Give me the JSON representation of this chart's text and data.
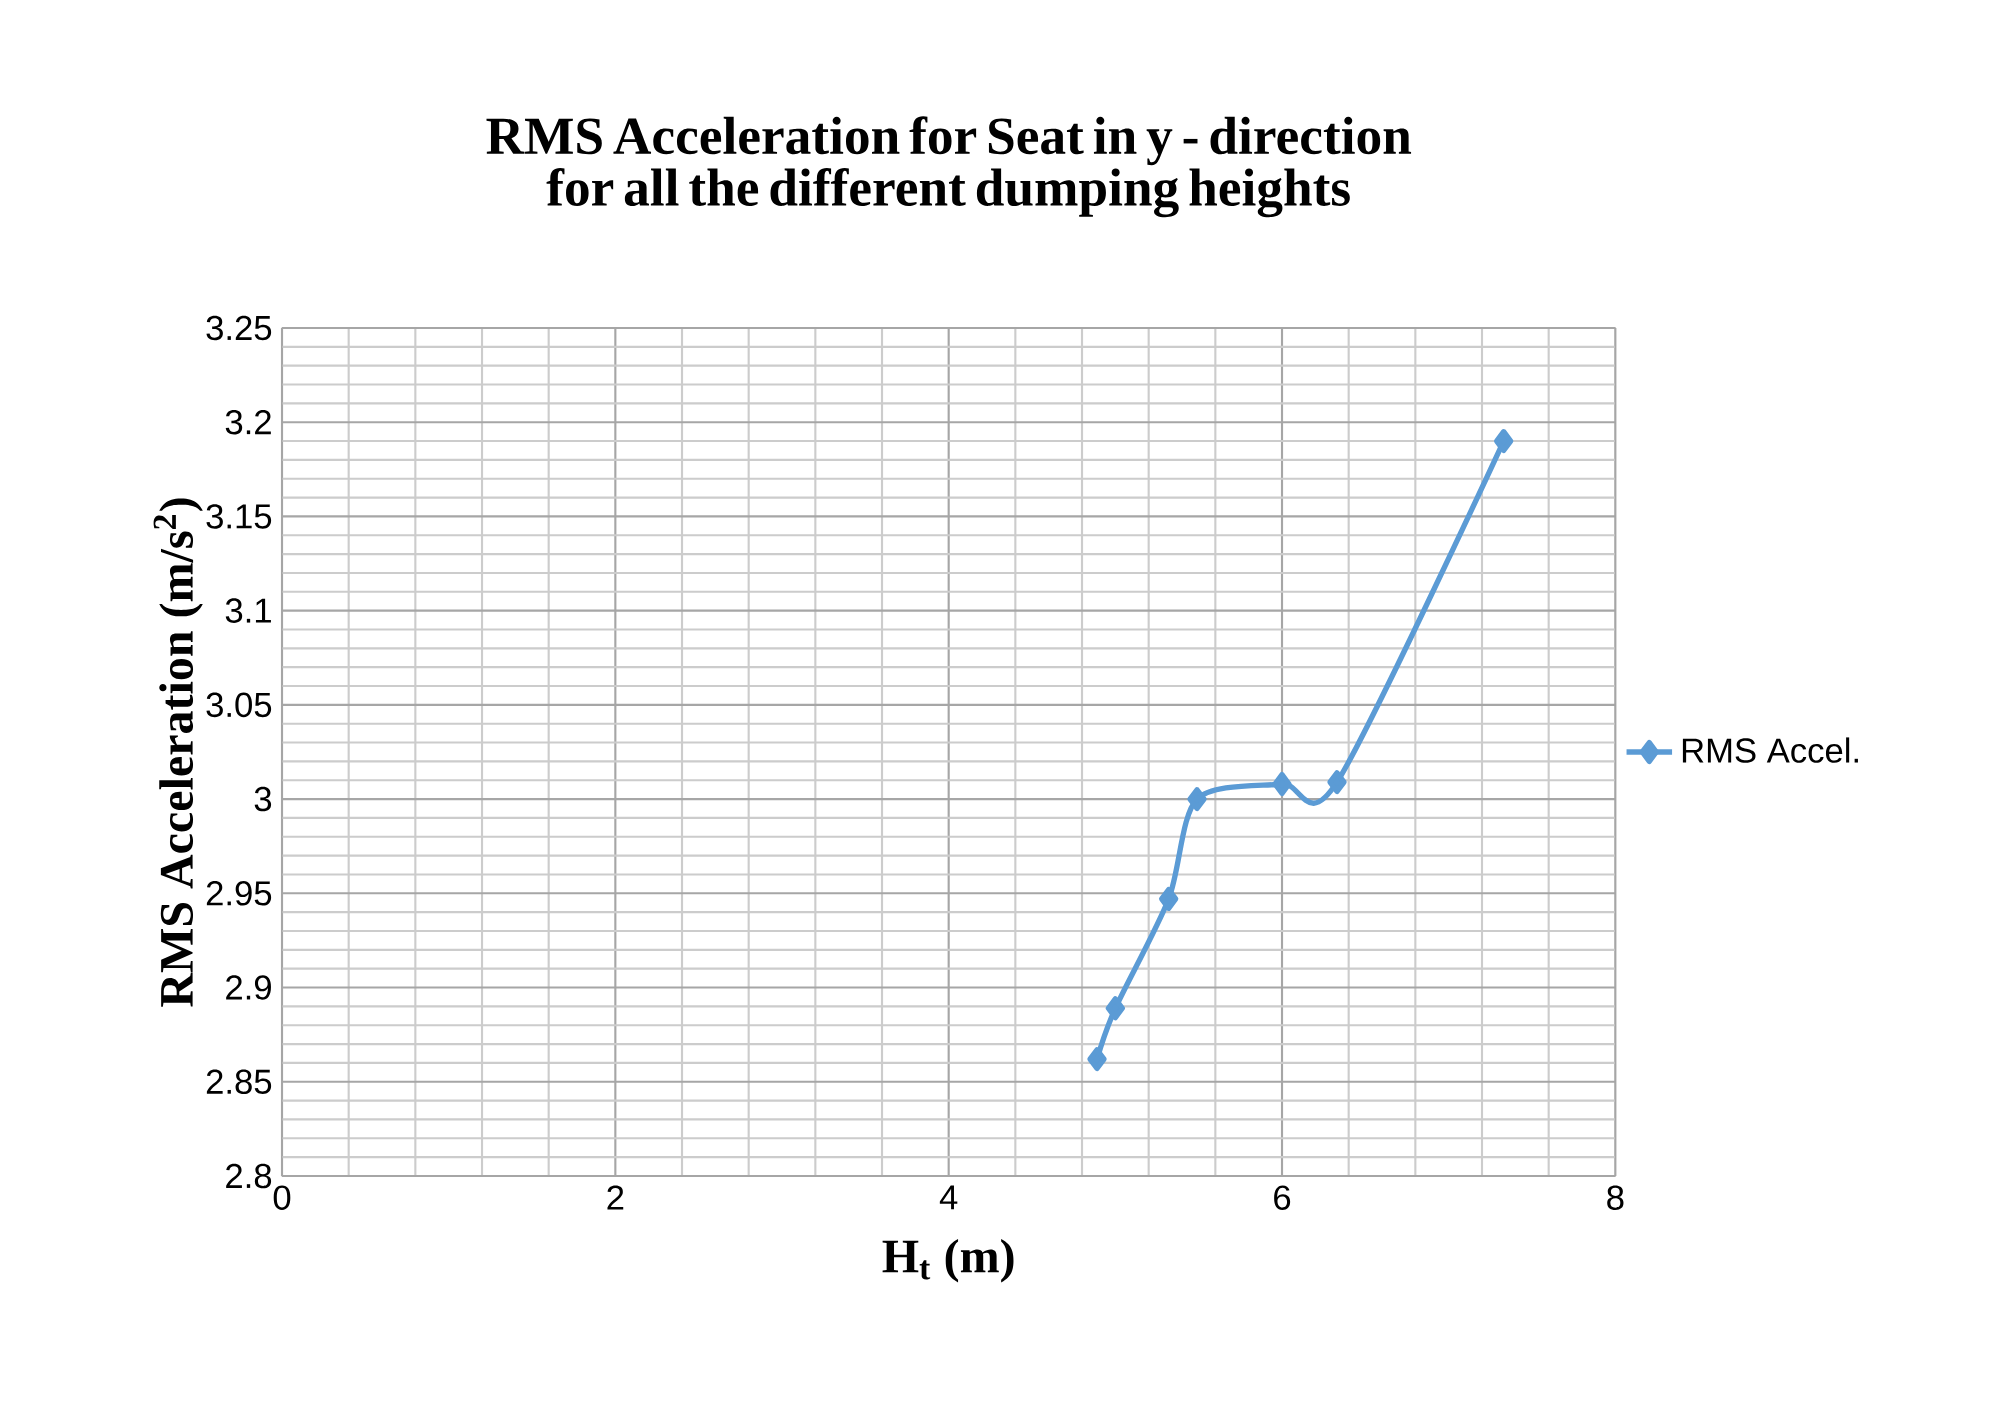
{
  "chart_data": {
    "type": "line",
    "title": "RMS Acceleration for Seat in y - direction for all the different dumping heights",
    "xlabel": "H$_{t}$  (m)",
    "ylabel": "RMS Acceleration (m/s$^{2}$)",
    "series": [
      {
        "name": "RMS Accel.",
        "color": "#5b9bd5",
        "x": [
          4.89,
          5.0,
          5.32,
          5.49,
          6.0,
          6.33,
          7.33
        ],
        "values": [
          2.862,
          2.889,
          2.947,
          3.0,
          3.008,
          3.009,
          3.19
        ]
      }
    ],
    "xlim": [
      0,
      8
    ],
    "xticks": [
      0,
      2,
      4,
      6,
      8
    ],
    "ylim": [
      2.8,
      3.25
    ],
    "yticks": [
      2.8,
      2.85,
      2.9,
      2.95,
      3,
      3.05,
      3.1,
      3.15,
      3.2,
      3.25
    ],
    "grid": true,
    "legend": "right",
    "marker": "diamond",
    "line_style": "solid"
  }
}
